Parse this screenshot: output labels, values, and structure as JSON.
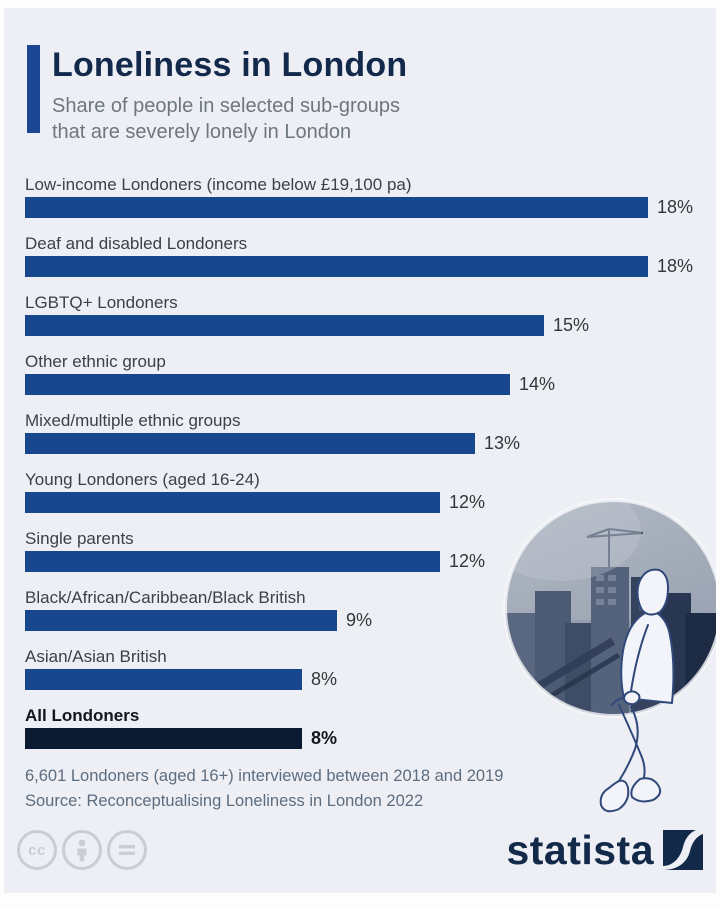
{
  "header": {
    "title": "Loneliness in London",
    "subtitle_line1": "Share of people in selected sub-groups",
    "subtitle_line2": "that are severely lonely in London"
  },
  "chart_data": {
    "type": "bar",
    "orientation": "horizontal",
    "unit": "%",
    "categories": [
      "Low-income Londoners (income below £19,100 pa)",
      "Deaf and disabled Londoners",
      "LGBTQ+ Londoners",
      "Other ethnic group",
      "Mixed/multiple ethnic groups",
      "Young Londoners (aged 16-24)",
      "Single parents",
      "Black/African/Caribbean/Black British",
      "Asian/Asian British",
      "All Londoners"
    ],
    "values": [
      18,
      18,
      15,
      14,
      13,
      12,
      12,
      9,
      8,
      8
    ],
    "value_labels": [
      "18%",
      "18%",
      "15%",
      "14%",
      "13%",
      "12%",
      "12%",
      "9%",
      "8%",
      "8%"
    ],
    "emphasis_index": 9,
    "xlim": [
      0,
      18
    ],
    "grid": false,
    "legend": "none",
    "bar_color": "#17478f",
    "emphasis_bar_color": "#0a1a30"
  },
  "footer": {
    "note": "6,601 Londoners (aged 16+) interviewed between 2018 and 2019",
    "source": "Source: Reconceptualising Loneliness in London 2022"
  },
  "branding": {
    "logo_text": "statista",
    "license_icons": [
      "cc-icon",
      "attribution-person-icon",
      "equals-icon"
    ]
  },
  "colors": {
    "card_background": "#edeff4",
    "accent": "#1c4693",
    "title": "#12294b",
    "subtitle": "#6e7681",
    "bar": "#17478f",
    "emphasis_bar": "#0a1a30",
    "footer_text": "#5d6d80",
    "statista_navy": "#12294a"
  }
}
